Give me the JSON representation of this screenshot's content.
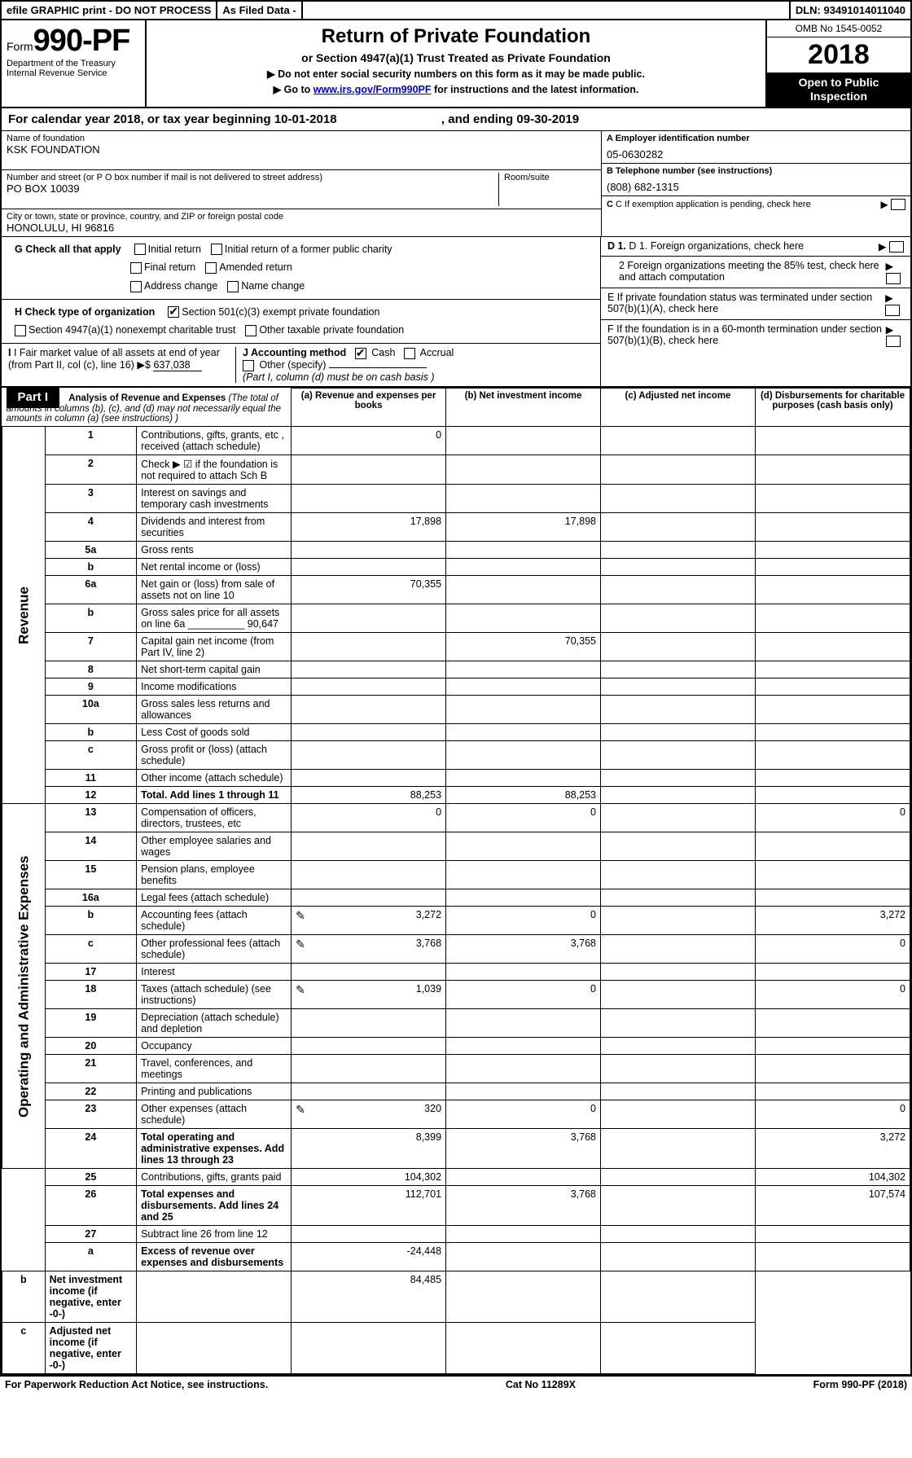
{
  "topbar": {
    "efile": "efile GRAPHIC print - DO NOT PROCESS",
    "asfiled": "As Filed Data -",
    "dln_label": "DLN:",
    "dln": "93491014011040"
  },
  "header": {
    "form_prefix": "Form",
    "form_num": "990-PF",
    "dept": "Department of the Treasury",
    "irs": "Internal Revenue Service",
    "title": "Return of Private Foundation",
    "subtitle": "or Section 4947(a)(1) Trust Treated as Private Foundation",
    "note1": "▶ Do not enter social security numbers on this form as it may be made public.",
    "note2_pre": "▶ Go to ",
    "note2_link": "www.irs.gov/Form990PF",
    "note2_post": " for instructions and the latest information.",
    "omb": "OMB No 1545-0052",
    "year": "2018",
    "otp1": "Open to Public",
    "otp2": "Inspection"
  },
  "calyear": {
    "text_pre": "For calendar year 2018, or tax year beginning ",
    "begin": "10-01-2018",
    "mid": " , and ending ",
    "end": "09-30-2019"
  },
  "entity": {
    "name_label": "Name of foundation",
    "name": "KSK FOUNDATION",
    "addr_label": "Number and street (or P O  box number if mail is not delivered to street address)",
    "addr": "PO BOX 10039",
    "room_label": "Room/suite",
    "city_label": "City or town, state or province, country, and ZIP or foreign postal code",
    "city": "HONOLULU, HI  96816",
    "ein_label": "A Employer identification number",
    "ein": "05-0630282",
    "tel_label": "B Telephone number (see instructions)",
    "tel": "(808) 682-1315",
    "c_label": "C If exemption application is pending, check here"
  },
  "g": {
    "label": "G Check all that apply",
    "o1": "Initial return",
    "o2": "Initial return of a former public charity",
    "o3": "Final return",
    "o4": "Amended return",
    "o5": "Address change",
    "o6": "Name change"
  },
  "h": {
    "label": "H Check type of organization",
    "o1": "Section 501(c)(3) exempt private foundation",
    "o2": "Section 4947(a)(1) nonexempt charitable trust",
    "o3": "Other taxable private foundation"
  },
  "i": {
    "label_a": "I Fair market value of all assets at end of year (from Part II, col  (c), line 16)",
    "arrow": "▶$",
    "val": "637,038"
  },
  "j": {
    "label": "J Accounting method",
    "cash": "Cash",
    "accrual": "Accrual",
    "other": "Other (specify)",
    "note": "(Part I, column (d) must be on cash basis )"
  },
  "d": {
    "d1": "D 1. Foreign organizations, check here",
    "d2": "2  Foreign organizations meeting the 85% test, check here and attach computation",
    "e": "E  If private foundation status was terminated under section 507(b)(1)(A), check here",
    "f": "F  If the foundation is in a 60-month termination under section 507(b)(1)(B), check here"
  },
  "part1": {
    "tag": "Part I",
    "hdr_title": "Analysis of Revenue and Expenses",
    "hdr_note": "(The total of amounts in columns (b), (c), and (d) may not necessarily equal the amounts in column (a) (see instructions) )",
    "col_a": "(a) Revenue and expenses per books",
    "col_b": "(b) Net investment income",
    "col_c": "(c) Adjusted net income",
    "col_d": "(d) Disbursements for charitable purposes (cash basis only)",
    "side_rev": "Revenue",
    "side_exp": "Operating and Administrative Expenses"
  },
  "rows": [
    {
      "n": "1",
      "t": "Contributions, gifts, grants, etc , received (attach schedule)",
      "a": "0",
      "gray_bcd": false,
      "gray_d": true
    },
    {
      "n": "2",
      "t": "Check ▶ ☑ if the foundation is not required to attach Sch  B",
      "blank": true
    },
    {
      "n": "3",
      "t": "Interest on savings and temporary cash investments"
    },
    {
      "n": "4",
      "t": "Dividends and interest from securities",
      "a": "17,898",
      "b": "17,898"
    },
    {
      "n": "5a",
      "t": "Gross rents"
    },
    {
      "n": "b",
      "t": "Net rental income or (loss)",
      "inset": true
    },
    {
      "n": "6a",
      "t": "Net gain or (loss) from sale of assets not on line 10",
      "a": "70,355"
    },
    {
      "n": "b",
      "t": "Gross sales price for all assets on line 6a __________ 90,647",
      "blank": true
    },
    {
      "n": "7",
      "t": "Capital gain net income (from Part IV, line 2)",
      "b": "70,355"
    },
    {
      "n": "8",
      "t": "Net short-term capital gain"
    },
    {
      "n": "9",
      "t": "Income modifications"
    },
    {
      "n": "10a",
      "t": "Gross sales less returns and allowances",
      "inset": true
    },
    {
      "n": "b",
      "t": "Less  Cost of goods sold",
      "inset": true
    },
    {
      "n": "c",
      "t": "Gross profit or (loss) (attach schedule)"
    },
    {
      "n": "11",
      "t": "Other income (attach schedule)"
    },
    {
      "n": "12",
      "t": "Total. Add lines 1 through 11",
      "bold": true,
      "a": "88,253",
      "b": "88,253"
    },
    {
      "n": "13",
      "t": "Compensation of officers, directors, trustees, etc",
      "a": "0",
      "b": "0",
      "d": "0"
    },
    {
      "n": "14",
      "t": "Other employee salaries and wages"
    },
    {
      "n": "15",
      "t": "Pension plans, employee benefits"
    },
    {
      "n": "16a",
      "t": "Legal fees (attach schedule)"
    },
    {
      "n": "b",
      "t": "Accounting fees (attach schedule)",
      "icon": true,
      "a": "3,272",
      "b": "0",
      "d": "3,272"
    },
    {
      "n": "c",
      "t": "Other professional fees (attach schedule)",
      "icon": true,
      "a": "3,768",
      "b": "3,768",
      "d": "0"
    },
    {
      "n": "17",
      "t": "Interest"
    },
    {
      "n": "18",
      "t": "Taxes (attach schedule) (see instructions)",
      "icon": true,
      "a": "1,039",
      "b": "0",
      "d": "0"
    },
    {
      "n": "19",
      "t": "Depreciation (attach schedule) and depletion"
    },
    {
      "n": "20",
      "t": "Occupancy"
    },
    {
      "n": "21",
      "t": "Travel, conferences, and meetings"
    },
    {
      "n": "22",
      "t": "Printing and publications"
    },
    {
      "n": "23",
      "t": "Other expenses (attach schedule)",
      "icon": true,
      "a": "320",
      "b": "0",
      "d": "0"
    },
    {
      "n": "24",
      "t": "Total operating and administrative expenses. Add lines 13 through 23",
      "bold": true,
      "a": "8,399",
      "b": "3,768",
      "d": "3,272"
    },
    {
      "n": "25",
      "t": "Contributions, gifts, grants paid",
      "a": "104,302",
      "d": "104,302"
    },
    {
      "n": "26",
      "t": "Total expenses and disbursements. Add lines 24 and 25",
      "bold": true,
      "a": "112,701",
      "b": "3,768",
      "d": "107,574"
    },
    {
      "n": "27",
      "t": "Subtract line 26 from line 12"
    },
    {
      "n": "a",
      "t": "Excess of revenue over expenses and disbursements",
      "bold": true,
      "a": "-24,448"
    },
    {
      "n": "b",
      "t": "Net investment income (if negative, enter -0-)",
      "bold": true,
      "b": "84,485"
    },
    {
      "n": "c",
      "t": "Adjusted net income (if negative, enter -0-)",
      "bold": true
    }
  ],
  "footer": {
    "left": "For Paperwork Reduction Act Notice, see instructions.",
    "mid": "Cat  No  11289X",
    "right": "Form 990-PF (2018)"
  }
}
